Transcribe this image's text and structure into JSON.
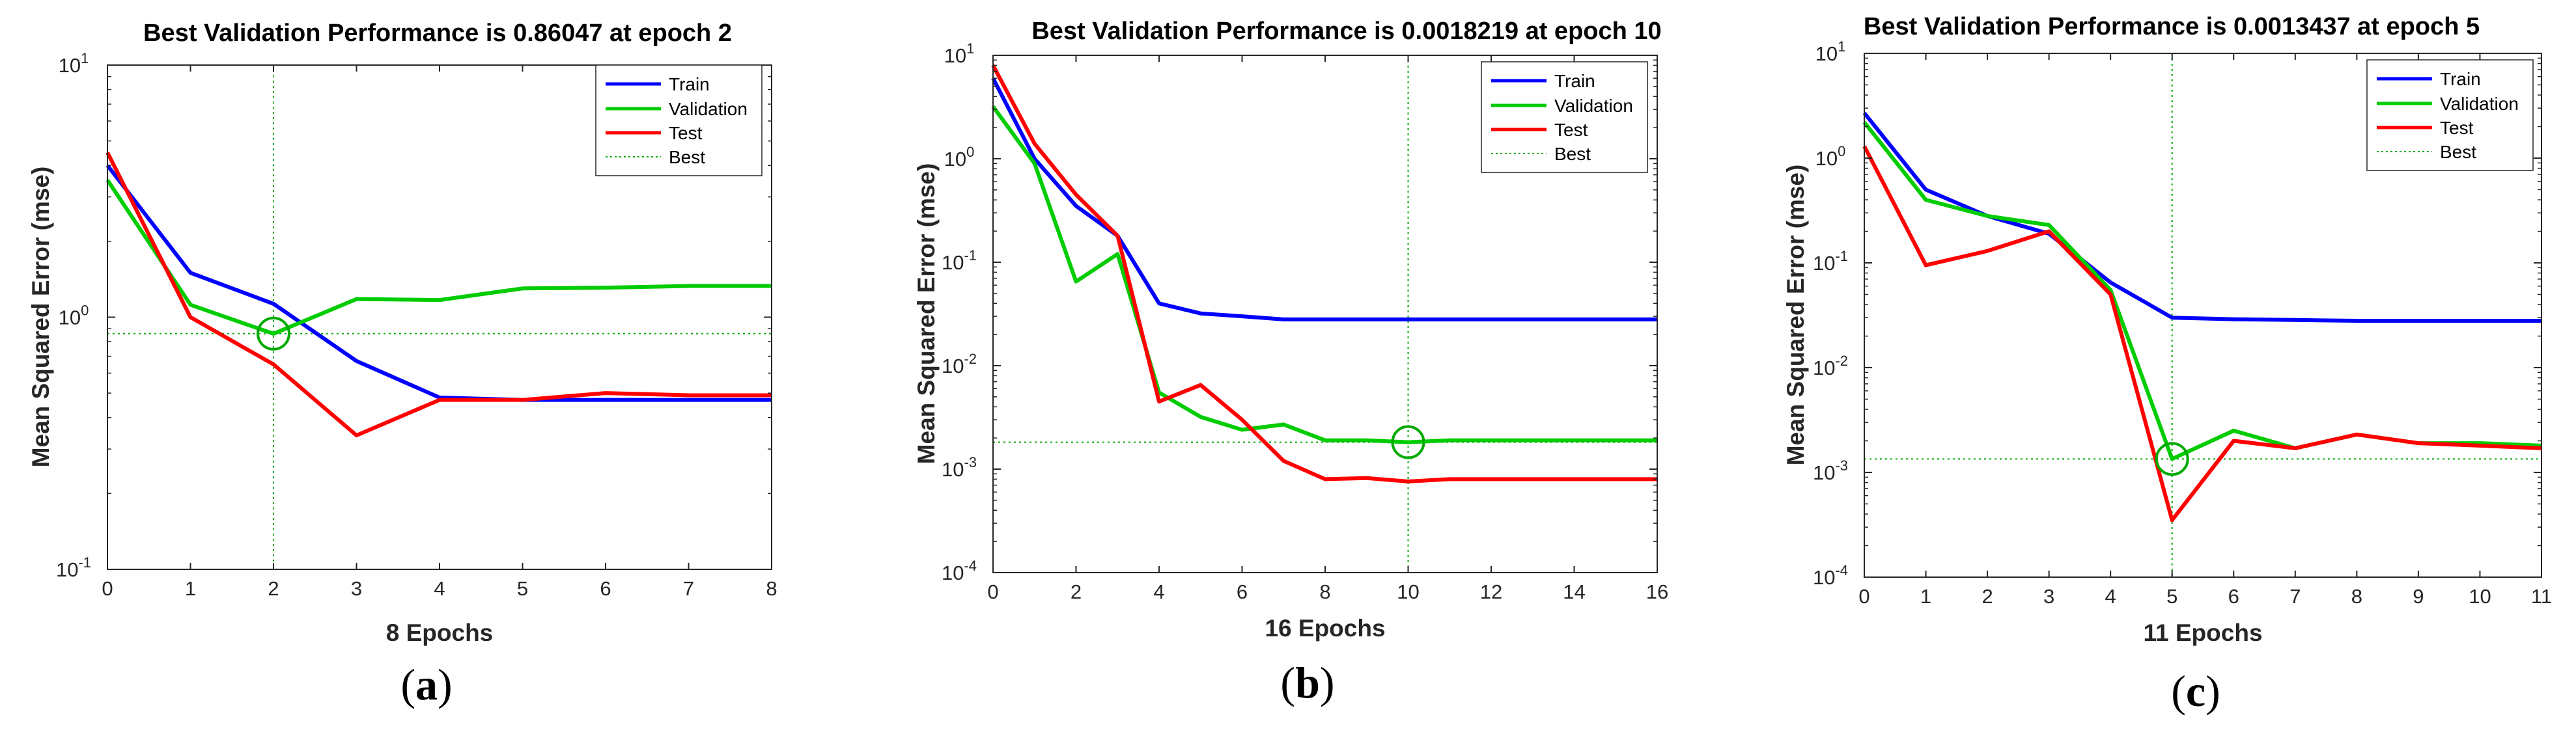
{
  "figure": {
    "colors": {
      "train": "#0000FF",
      "validation": "#00CC00",
      "test": "#FF0000",
      "best": "#00AA00",
      "axis": "#262626"
    }
  },
  "chart_data": [
    {
      "type": "line",
      "title": "Best Validation Performance is 0.86047 at epoch 2",
      "xlabel": "8 Epochs",
      "ylabel": "Mean Squared Error  (mse)",
      "yscale": "log",
      "xlim": [
        0,
        8
      ],
      "ylim": [
        0.1,
        10
      ],
      "xticks": [
        0,
        1,
        2,
        3,
        4,
        5,
        6,
        7,
        8
      ],
      "yticks": [
        {
          "value": 0.1,
          "base": "10",
          "exp": "-1"
        },
        {
          "value": 1,
          "base": "10",
          "exp": "0"
        },
        {
          "value": 10,
          "base": "10",
          "exp": "1"
        }
      ],
      "caption_open": "(",
      "caption_letter": "a",
      "caption_close": ")",
      "legend": [
        "Train",
        "Validation",
        "Test",
        "Best"
      ],
      "legend_position": "top-right",
      "x": [
        0,
        1,
        2,
        3,
        4,
        5,
        6,
        7,
        8
      ],
      "series": [
        {
          "name": "Train",
          "color": "#0000FF",
          "values": [
            4.0,
            1.5,
            1.13,
            0.67,
            0.48,
            0.47,
            0.47,
            0.47,
            0.47
          ]
        },
        {
          "name": "Validation",
          "color": "#00CC00",
          "values": [
            3.5,
            1.12,
            0.86,
            1.18,
            1.17,
            1.3,
            1.31,
            1.33,
            1.33
          ]
        },
        {
          "name": "Test",
          "color": "#FF0000",
          "values": [
            4.5,
            1.0,
            0.65,
            0.34,
            0.47,
            0.47,
            0.5,
            0.49,
            0.49
          ]
        }
      ],
      "best": {
        "epoch": 2,
        "value": 0.86047
      }
    },
    {
      "type": "line",
      "title": "Best Validation Performance is 0.0018219 at epoch 10",
      "xlabel": "16 Epochs",
      "ylabel": "Mean Squared Error  (mse)",
      "yscale": "log",
      "xlim": [
        0,
        16
      ],
      "ylim": [
        0.0001,
        10
      ],
      "xticks": [
        0,
        2,
        4,
        6,
        8,
        10,
        12,
        14,
        16
      ],
      "yticks": [
        {
          "value": 0.0001,
          "base": "10",
          "exp": "-4"
        },
        {
          "value": 0.001,
          "base": "10",
          "exp": "-3"
        },
        {
          "value": 0.01,
          "base": "10",
          "exp": "-2"
        },
        {
          "value": 0.1,
          "base": "10",
          "exp": "-1"
        },
        {
          "value": 1,
          "base": "10",
          "exp": "0"
        },
        {
          "value": 10,
          "base": "10",
          "exp": "1"
        }
      ],
      "caption_open": "(",
      "caption_letter": "b",
      "caption_close": ")",
      "legend": [
        "Train",
        "Validation",
        "Test",
        "Best"
      ],
      "legend_position": "top-right",
      "x": [
        0,
        1,
        2,
        3,
        4,
        5,
        6,
        7,
        8,
        9,
        10,
        11,
        12,
        13,
        14,
        15,
        16
      ],
      "series": [
        {
          "name": "Train",
          "color": "#0000FF",
          "values": [
            6.0,
            1.0,
            0.35,
            0.18,
            0.04,
            0.032,
            0.03,
            0.028,
            0.028,
            0.028,
            0.028,
            0.028,
            0.028,
            0.028,
            0.028,
            0.028,
            0.028
          ]
        },
        {
          "name": "Validation",
          "color": "#00CC00",
          "values": [
            3.2,
            0.9,
            0.065,
            0.12,
            0.0055,
            0.0032,
            0.0024,
            0.0027,
            0.0019,
            0.0019,
            0.00182,
            0.0019,
            0.0019,
            0.0019,
            0.0019,
            0.0019,
            0.0019
          ]
        },
        {
          "name": "Test",
          "color": "#FF0000",
          "values": [
            8.0,
            1.4,
            0.45,
            0.18,
            0.0045,
            0.0065,
            0.003,
            0.0012,
            0.0008,
            0.00082,
            0.00076,
            0.0008,
            0.0008,
            0.0008,
            0.0008,
            0.0008,
            0.0008
          ]
        }
      ],
      "best": {
        "epoch": 10,
        "value": 0.0018219
      }
    },
    {
      "type": "line",
      "title": "Best Validation Performance is 0.0013437 at epoch 5",
      "xlabel": "11 Epochs",
      "ylabel": "Mean Squared Error  (mse)",
      "yscale": "log",
      "xlim": [
        0,
        11
      ],
      "ylim": [
        0.0001,
        10
      ],
      "xticks": [
        0,
        1,
        2,
        3,
        4,
        5,
        6,
        7,
        8,
        9,
        10,
        11
      ],
      "yticks": [
        {
          "value": 0.0001,
          "base": "10",
          "exp": "-4"
        },
        {
          "value": 0.001,
          "base": "10",
          "exp": "-3"
        },
        {
          "value": 0.01,
          "base": "10",
          "exp": "-2"
        },
        {
          "value": 0.1,
          "base": "10",
          "exp": "-1"
        },
        {
          "value": 1,
          "base": "10",
          "exp": "0"
        },
        {
          "value": 10,
          "base": "10",
          "exp": "1"
        }
      ],
      "caption_open": "(",
      "caption_letter": "c",
      "caption_close": ")",
      "legend": [
        "Train",
        "Validation",
        "Test",
        "Best"
      ],
      "legend_position": "top-right",
      "x": [
        0,
        1,
        2,
        3,
        4,
        5,
        6,
        7,
        8,
        9,
        10,
        11
      ],
      "series": [
        {
          "name": "Train",
          "color": "#0000FF",
          "values": [
            2.7,
            0.5,
            0.28,
            0.19,
            0.065,
            0.03,
            0.029,
            0.0285,
            0.028,
            0.028,
            0.028,
            0.028
          ]
        },
        {
          "name": "Validation",
          "color": "#00CC00",
          "values": [
            2.2,
            0.4,
            0.28,
            0.23,
            0.055,
            0.0013437,
            0.0025,
            0.0017,
            0.0023,
            0.0019,
            0.0019,
            0.0018
          ]
        },
        {
          "name": "Test",
          "color": "#FF0000",
          "values": [
            1.3,
            0.095,
            0.13,
            0.2,
            0.05,
            0.00035,
            0.002,
            0.0017,
            0.0023,
            0.0019,
            0.0018,
            0.0017
          ]
        }
      ],
      "best": {
        "epoch": 5,
        "value": 0.0013437
      }
    }
  ]
}
